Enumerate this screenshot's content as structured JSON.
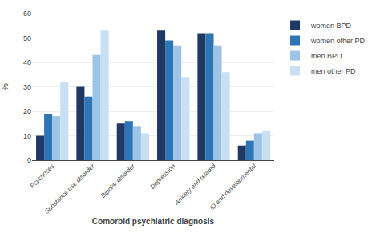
{
  "chart_data": {
    "type": "bar",
    "categories": [
      "Psychoses",
      "Substance use disorder",
      "Bipolar disorder",
      "Depression",
      "Anxiety and related",
      "ID and developmental"
    ],
    "series": [
      {
        "name": "women BPD",
        "color": "#1f3864",
        "values": [
          10,
          30,
          15,
          53,
          52,
          6
        ]
      },
      {
        "name": "women other PD",
        "color": "#2e75b6",
        "values": [
          19,
          26,
          16,
          49,
          52,
          8
        ]
      },
      {
        "name": "men BPD",
        "color": "#9dc3e6",
        "values": [
          18,
          43,
          14,
          47,
          47,
          11
        ]
      },
      {
        "name": "men other PD",
        "color": "#c9dff2",
        "values": [
          32,
          53,
          11,
          34,
          36,
          12
        ]
      }
    ],
    "ylabel": "%",
    "xlabel": "Comorbid psychiatric diagnosis",
    "ylim": [
      0,
      60
    ],
    "yticks": [
      0,
      10,
      20,
      30,
      40,
      50,
      60
    ],
    "grid": true,
    "legend": "upper right"
  }
}
